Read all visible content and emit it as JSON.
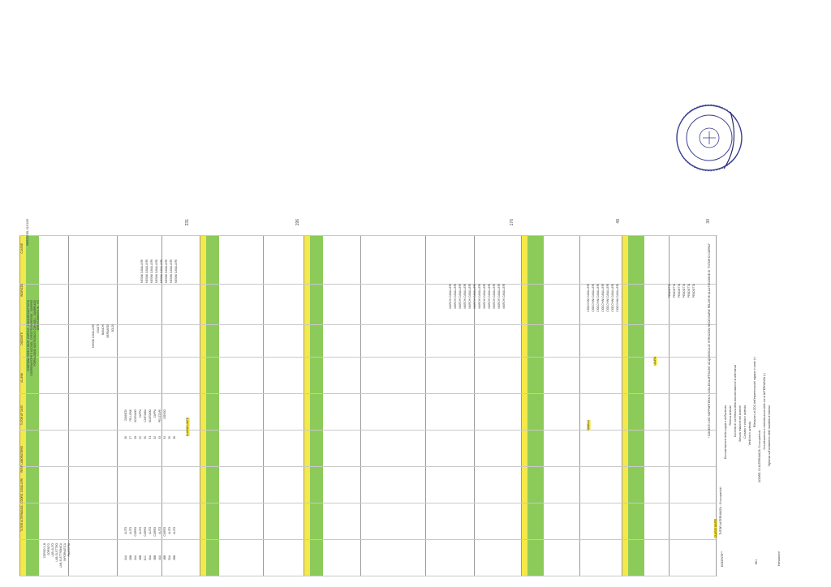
{
  "doc": {
    "top_note": "BOZZA DEL 31/01/25",
    "header_labels": [
      "CLASSE",
      "INDIRIZZO",
      "DOCENTE",
      "ALUNNI",
      "TUTOR AF 24/25",
      "RESP. LABORATORIO",
      "TUTOR ALTERNANZA - COORD. CAVALLERI"
    ],
    "section_labels": [
      "COORDINATORE E RESP. CORTILE - CONCORSI/ATTIVITA",
      "COORDINATORE E ACCOGL. CREDITO INGRESSO - DAVERIO",
      "FORMAZIONE SOSTEGNO E CONSIGLI - DAMBRUOSI",
      "ORIENTAMENTO IN - ITE"
    ],
    "section_groups": [
      {
        "label": "CLASSE",
        "class": "yellow"
      },
      {
        "label": "INDIRIZZO",
        "class": "yellow"
      },
      {
        "label": "CLASSE",
        "class": "yellow"
      },
      {
        "label": "CLASSE",
        "class": "yellow"
      },
      {
        "label": "CLASSE",
        "class": "yellow"
      },
      {
        "label": "CLASSE",
        "class": "yellow"
      }
    ],
    "column_a": [
      "CORSO 3_B",
      "CORSO D",
      "LAB. AUTO",
      "LAB. ELETTRO",
      "LAB. ELETTRONICA",
      "INFORMATICA",
      "PALESTRA",
      "1AA",
      "1BB",
      "2AA",
      "2BB",
      "2CC",
      "3AA",
      "3BB",
      "4AA",
      "4BB",
      "5AA",
      "5BB"
    ],
    "column_b": [
      "AUTO",
      "AUTO",
      "CARRO",
      "AUTO",
      "CARRO",
      "AUTO",
      "CARRO",
      "AUTO",
      "CARRO",
      "AUTO",
      "AUTO"
    ],
    "column_c": [
      "CLASSE UNITE"
    ],
    "numbers_1": [
      "26",
      "27",
      "28",
      "29",
      "30",
      "31",
      "32",
      "33",
      "34",
      "35",
      "36"
    ],
    "names_1": [
      "ZANNEDI",
      "FELLONE",
      "SCARAMO",
      "ZAPPA",
      "CARTABIA",
      "SCARAMO",
      "ZAPPA",
      "PELIZZARI",
      "DOSSO"
    ],
    "names_tutor": [
      "MESINI CAVALLERI",
      "MESINI CAVALLERI",
      "MESINI CAVALLERI",
      "MESINI CAVALLERI",
      "MESINI CAVALLERI",
      "MESINI CAVALLERI",
      "MESINI CAVALLERI",
      "MESINI CAVALLERI"
    ],
    "lab_names": [
      "MESINI CAVALLERI",
      "GIUSTI",
      "BIANCHI",
      "BERNARDI",
      "SOLDI",
      "ZANARDI",
      "FOPPA",
      "ROSSI"
    ],
    "mid_names": [
      "MARCHI CAVALLERI",
      "MARCHI CAVALLERI",
      "MARCHI CAVALLERI",
      "MARCHI CAVALLERI",
      "MARCHI CAVALLERI",
      "MARCHI CAVALLERI",
      "MARCHI CAVALLERI",
      "MARCHI CAVALLERI",
      "MARCHI CAVALLERI",
      "MARCHI CAVALLERI",
      "MARCHI CAVALLERI",
      "MARCHI CAVALLERI"
    ],
    "right_names": [
      "CIOCCHINI CAVALLERI",
      "CIOCCHINI CAVALLERI",
      "CIOCCHINI CAVALLERI",
      "CIOCCHINI CAVALLERI",
      "CIOCCHINI CAVALLERI",
      "CIOCCHINI CAVALLERI",
      "CIOCCHINI CAVALLERI"
    ],
    "far_right": [
      "PENDOTTA",
      "PENDOTTA",
      "PENDOTTA",
      "PENDOTTA",
      "PENDOTTA",
      "PENDOTTA"
    ],
    "side_totals": [
      "231",
      "196",
      "176",
      "49",
      "30"
    ],
    "highlight_cells": [
      "CLASSE UNITE",
      "ZANELLI",
      "LAURA"
    ],
    "footnotes": [
      "* DOCENTI CHE SUPPORTERA' IL COLLEGA AFFINCHE' ACQUISISCA LE ISTRUZIONI NECESSARIE RELATIVE ALLA FUNZIONE DI \"TUTOR DI CORSO\"",
      "CLASSI UNITE",
      "TUTOR ALTERNANZA - Si occuperà di:",
      "Documentazione della coppia e dell'azienda",
      "Ricerca Aziende",
      "Controllo di correttezza della documentazione di alternanza",
      "Stesura relazione del docente",
      "Contatto e visita in azienda",
      "Verifiche in azienda",
      "Rilevazioni al CDC dell'esperienza del ragazzo in sede (+)",
      "COORD. DI ALTERNANZA: Si occuperà di:",
      "Coordinamento e redistribuzione delle ore di ALTERNANZA (+)",
      "Vigilanza sull'andamento delle modalità di sistema",
      "DOCENTE**",
      "Intestazione",
      "IO/1"
    ]
  }
}
